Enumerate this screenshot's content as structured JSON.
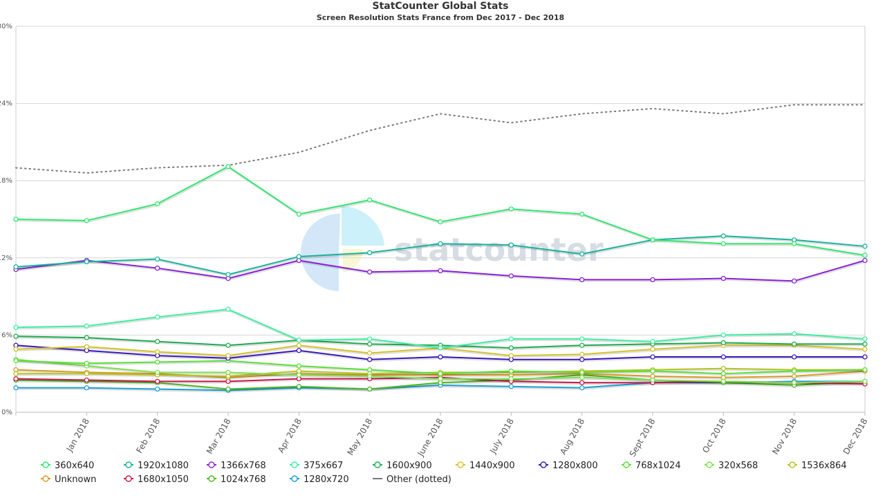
{
  "chart_data": {
    "type": "line",
    "title": "StatCounter Global Stats",
    "subtitle": "Screen Resolution Stats France from Dec 2017 - Dec 2018",
    "x": [
      "",
      "Jan 2018",
      "Feb 2018",
      "Mar 2018",
      "Apr 2018",
      "May 2018",
      "June 2018",
      "July 2018",
      "Aug 2018",
      "Sept 2018",
      "Oct 2018",
      "Nov 2018",
      "Dec 2018"
    ],
    "ylim": [
      0,
      30
    ],
    "yticks": [
      0,
      6,
      12,
      18,
      24,
      30
    ],
    "ytick_labels": [
      "0%",
      "6%",
      "12%",
      "18%",
      "24%",
      "30%"
    ],
    "grid": true,
    "legend_position": "bottom",
    "watermark": "statcounter",
    "series": [
      {
        "name": "360x640",
        "color": "#2ee86e",
        "values": [
          15.0,
          14.9,
          16.2,
          19.1,
          15.4,
          16.5,
          14.8,
          15.8,
          15.4,
          13.4,
          13.1,
          13.1,
          12.2
        ]
      },
      {
        "name": "1920x1080",
        "color": "#16b39b",
        "values": [
          11.3,
          11.7,
          11.9,
          10.7,
          12.1,
          12.4,
          13.1,
          13.0,
          12.3,
          13.4,
          13.7,
          13.4,
          12.9
        ]
      },
      {
        "name": "1366x768",
        "color": "#8a1fd4",
        "values": [
          11.1,
          11.8,
          11.2,
          10.4,
          11.8,
          10.9,
          11.0,
          10.6,
          10.3,
          10.3,
          10.4,
          10.2,
          11.8
        ]
      },
      {
        "name": "375x667",
        "color": "#3df0a0",
        "values": [
          6.6,
          6.7,
          7.4,
          8.0,
          5.6,
          5.7,
          5.0,
          5.7,
          5.7,
          5.5,
          6.0,
          6.1,
          5.7
        ]
      },
      {
        "name": "1600x900",
        "color": "#1faa50",
        "values": [
          5.9,
          5.8,
          5.5,
          5.2,
          5.6,
          5.3,
          5.2,
          5.0,
          5.2,
          5.3,
          5.4,
          5.3,
          5.3
        ]
      },
      {
        "name": "1440x900",
        "color": "#d4c42a",
        "values": [
          4.9,
          5.1,
          4.7,
          4.4,
          5.2,
          4.6,
          5.0,
          4.4,
          4.5,
          4.9,
          5.2,
          5.2,
          4.9
        ]
      },
      {
        "name": "1280x800",
        "color": "#3a16b8",
        "values": [
          5.2,
          4.8,
          4.4,
          4.2,
          4.8,
          4.1,
          4.3,
          4.1,
          4.1,
          4.3,
          4.3,
          4.3,
          4.3
        ]
      },
      {
        "name": "768x1024",
        "color": "#58e036",
        "values": [
          4.0,
          3.8,
          3.9,
          4.0,
          3.6,
          3.3,
          3.0,
          3.2,
          3.1,
          3.2,
          3.0,
          3.2,
          3.3
        ]
      },
      {
        "name": "320x568",
        "color": "#7ee050",
        "values": [
          4.1,
          3.6,
          3.1,
          3.1,
          2.9,
          2.8,
          2.6,
          2.6,
          2.7,
          2.5,
          2.4,
          2.3,
          2.4
        ]
      },
      {
        "name": "1536x864",
        "color": "#b5c41f",
        "values": [
          3.0,
          3.0,
          2.9,
          2.8,
          3.2,
          3.0,
          3.1,
          3.1,
          3.2,
          3.3,
          3.4,
          3.3,
          3.3
        ]
      },
      {
        "name": "Unknown",
        "color": "#d99a22",
        "values": [
          3.3,
          3.1,
          3.0,
          2.7,
          3.0,
          2.9,
          2.9,
          2.9,
          3.0,
          2.8,
          2.7,
          2.8,
          3.2
        ]
      },
      {
        "name": "1680x1050",
        "color": "#c8164a",
        "values": [
          2.6,
          2.5,
          2.4,
          2.4,
          2.6,
          2.6,
          2.7,
          2.4,
          2.3,
          2.3,
          2.4,
          2.3,
          2.2
        ]
      },
      {
        "name": "1024x768",
        "color": "#4ab820",
        "values": [
          2.5,
          2.4,
          2.3,
          1.8,
          2.0,
          1.8,
          2.3,
          2.5,
          2.9,
          2.5,
          2.3,
          2.1,
          2.4
        ]
      },
      {
        "name": "1280x720",
        "color": "#1aa0d4",
        "values": [
          1.9,
          1.9,
          1.8,
          1.7,
          1.9,
          1.8,
          2.1,
          2.0,
          1.9,
          2.3,
          2.3,
          2.4,
          2.4
        ]
      },
      {
        "name": "Other (dotted)",
        "color": "#777777",
        "dotted": true,
        "values": [
          19.0,
          18.6,
          19.0,
          19.2,
          20.2,
          21.9,
          23.2,
          22.5,
          23.2,
          23.6,
          23.2,
          23.9,
          23.9
        ]
      }
    ]
  }
}
